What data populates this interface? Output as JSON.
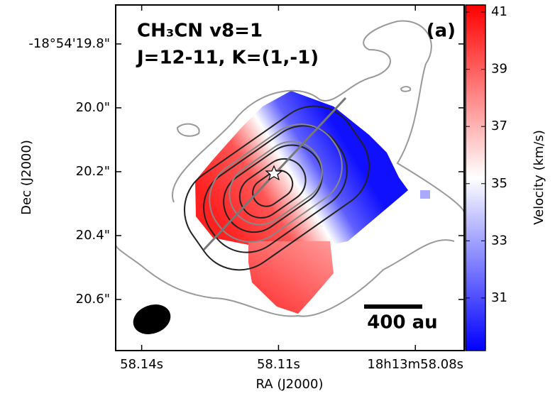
{
  "chart_data": {
    "type": "map",
    "title": [
      "CH₃CN v8=1",
      "J=12-11, K=(1,-1)"
    ],
    "panel_label": "(a)",
    "xlabel": "RA (J2000)",
    "ylabel": "Dec (J2000)",
    "xlim": [
      58.1457,
      58.0693
    ],
    "xticks": [
      {
        "value": 58.14,
        "label": "58.14s"
      },
      {
        "value": 58.11,
        "label": "58.11s"
      },
      {
        "value": 58.08,
        "label": "18h13m58.08s"
      }
    ],
    "ylim": [
      20.76,
      19.678
    ],
    "yticks": [
      {
        "value": 19.8,
        "label": "-18°54'19.8\""
      },
      {
        "value": 20.0,
        "label": "20.0\""
      },
      {
        "value": 20.2,
        "label": "20.2\""
      },
      {
        "value": 20.4,
        "label": "20.4\""
      },
      {
        "value": 20.6,
        "label": "20.6\""
      }
    ],
    "colorbar_label": "Velocity (km/s)",
    "clim": [
      29.16,
      41.25
    ],
    "cticks": [
      31,
      33,
      35,
      37,
      39,
      41
    ],
    "colormap": [
      "#0000ff",
      "#ffffff",
      "#ff0000"
    ],
    "scale_bar_label": "400 au"
  }
}
